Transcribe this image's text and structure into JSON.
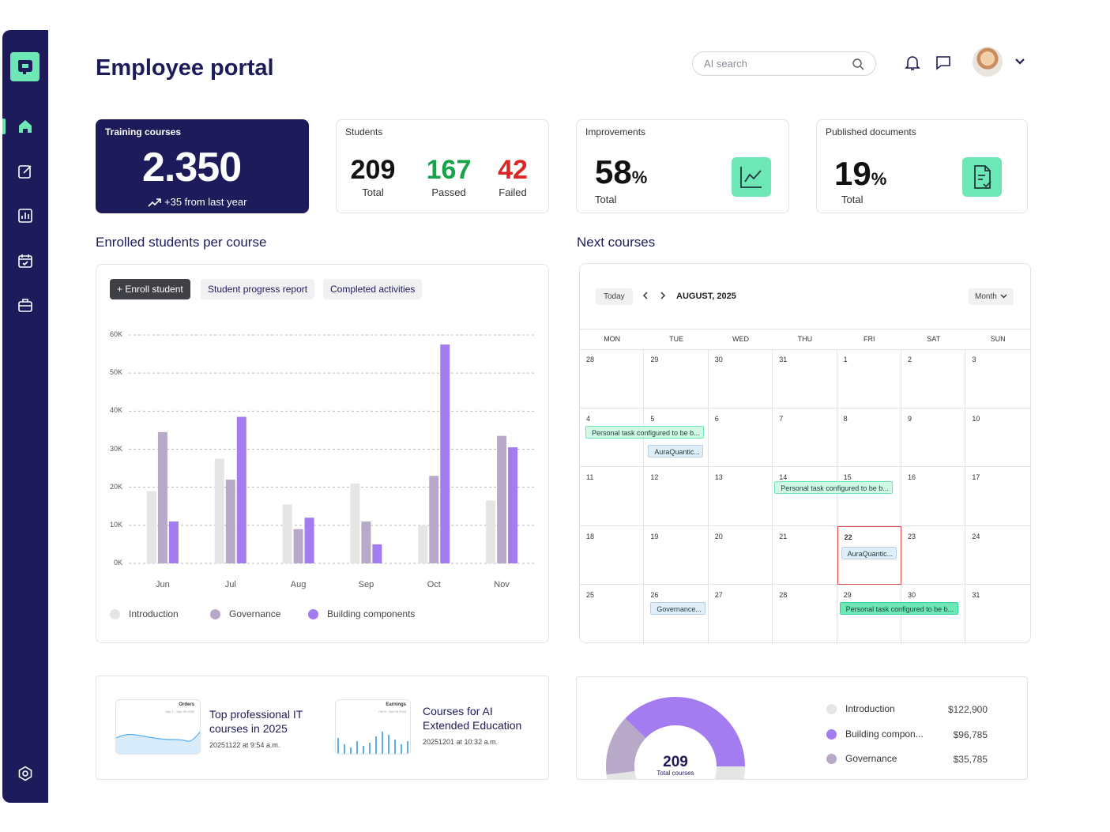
{
  "header": {
    "title": "Employee portal",
    "search_placeholder": "AI search"
  },
  "cards": {
    "training": {
      "label": "Training courses",
      "value": "2.350",
      "delta": "+35 from last year"
    },
    "students": {
      "label": "Students",
      "stats": [
        {
          "value": "209",
          "label": "Total",
          "color": "#111111"
        },
        {
          "value": "167",
          "label": "Passed",
          "color": "#16a34a"
        },
        {
          "value": "42",
          "label": "Failed",
          "color": "#dc2626"
        }
      ]
    },
    "improvements": {
      "label": "Improvements",
      "value": "58",
      "unit": "%",
      "sub": "Total"
    },
    "documents": {
      "label": "Published documents",
      "value": "19",
      "unit": "%",
      "sub": "Total"
    }
  },
  "enrolled": {
    "title": "Enrolled students per course",
    "buttons": [
      "+ Enroll student",
      "Student progress report",
      "Completed activities"
    ]
  },
  "chart_data": {
    "type": "bar",
    "categories": [
      "Jun",
      "Jul",
      "Aug",
      "Sep",
      "Oct",
      "Nov"
    ],
    "series": [
      {
        "name": "Introduction",
        "color": "#e5e5e5",
        "values": [
          19000,
          27500,
          15500,
          21000,
          10000,
          16500
        ]
      },
      {
        "name": "Governance",
        "color": "#b8a9c9",
        "values": [
          34500,
          22000,
          9000,
          11000,
          23000,
          33500
        ]
      },
      {
        "name": "Building components",
        "color": "#a37cf0",
        "values": [
          11000,
          38500,
          12000,
          5000,
          57500,
          30500
        ]
      }
    ],
    "yticks": [
      "0K",
      "10K",
      "20K",
      "30K",
      "40K",
      "50K",
      "60K"
    ],
    "ylim": [
      0,
      60000
    ],
    "grid": true,
    "legend": "bottom"
  },
  "calendar": {
    "title": "Next courses",
    "today_label": "Today",
    "month_label": "AUGUST, 2025",
    "view_label": "Month",
    "dow": [
      "MON",
      "TUE",
      "WED",
      "THU",
      "FRI",
      "SAT",
      "SUN"
    ],
    "weeks": [
      [
        "28",
        "29",
        "30",
        "31",
        "1",
        "2",
        "3"
      ],
      [
        "4",
        "5",
        "6",
        "7",
        "8",
        "9",
        "10"
      ],
      [
        "11",
        "12",
        "13",
        "14",
        "15",
        "16",
        "17"
      ],
      [
        "18",
        "19",
        "20",
        "21",
        "22",
        "23",
        "24"
      ],
      [
        "25",
        "26",
        "27",
        "28",
        "29",
        "30",
        "31"
      ]
    ],
    "today": "22",
    "events": [
      {
        "text": "Personal task configured to be b...",
        "style": "g"
      },
      {
        "text": "AuraQuantic...",
        "style": "b"
      },
      {
        "text": "Personal task configured to be b...",
        "style": "g"
      },
      {
        "text": "AuraQuantic...",
        "style": "b"
      },
      {
        "text": "Governance...",
        "style": "b"
      },
      {
        "text": "Personal task configured to be b...",
        "style": "gs"
      }
    ]
  },
  "courses": [
    {
      "title": "Top professional IT courses in 2025",
      "date": "20251122 at 9:54 a.m.",
      "thumb_label": "Orders",
      "thumb_sub": "Sep 1 - Sep 30 2020"
    },
    {
      "title": "Courses for AI Extended Education",
      "date": "20251201 at 10:32 a.m.",
      "thumb_label": "Earnings",
      "thumb_sub": "Oct 8 - Oct 28 2020"
    }
  ],
  "donut": {
    "center_value": "209",
    "center_label": "Total courses",
    "items": [
      {
        "name": "Introduction",
        "value": "$122,900",
        "amount": 122900,
        "color": "#e5e5e5"
      },
      {
        "name": "Building compon...",
        "value": "$96,785",
        "amount": 96785,
        "color": "#a37cf0"
      },
      {
        "name": "Governance",
        "value": "$35,785",
        "amount": 35785,
        "color": "#b8a9c9"
      }
    ]
  }
}
